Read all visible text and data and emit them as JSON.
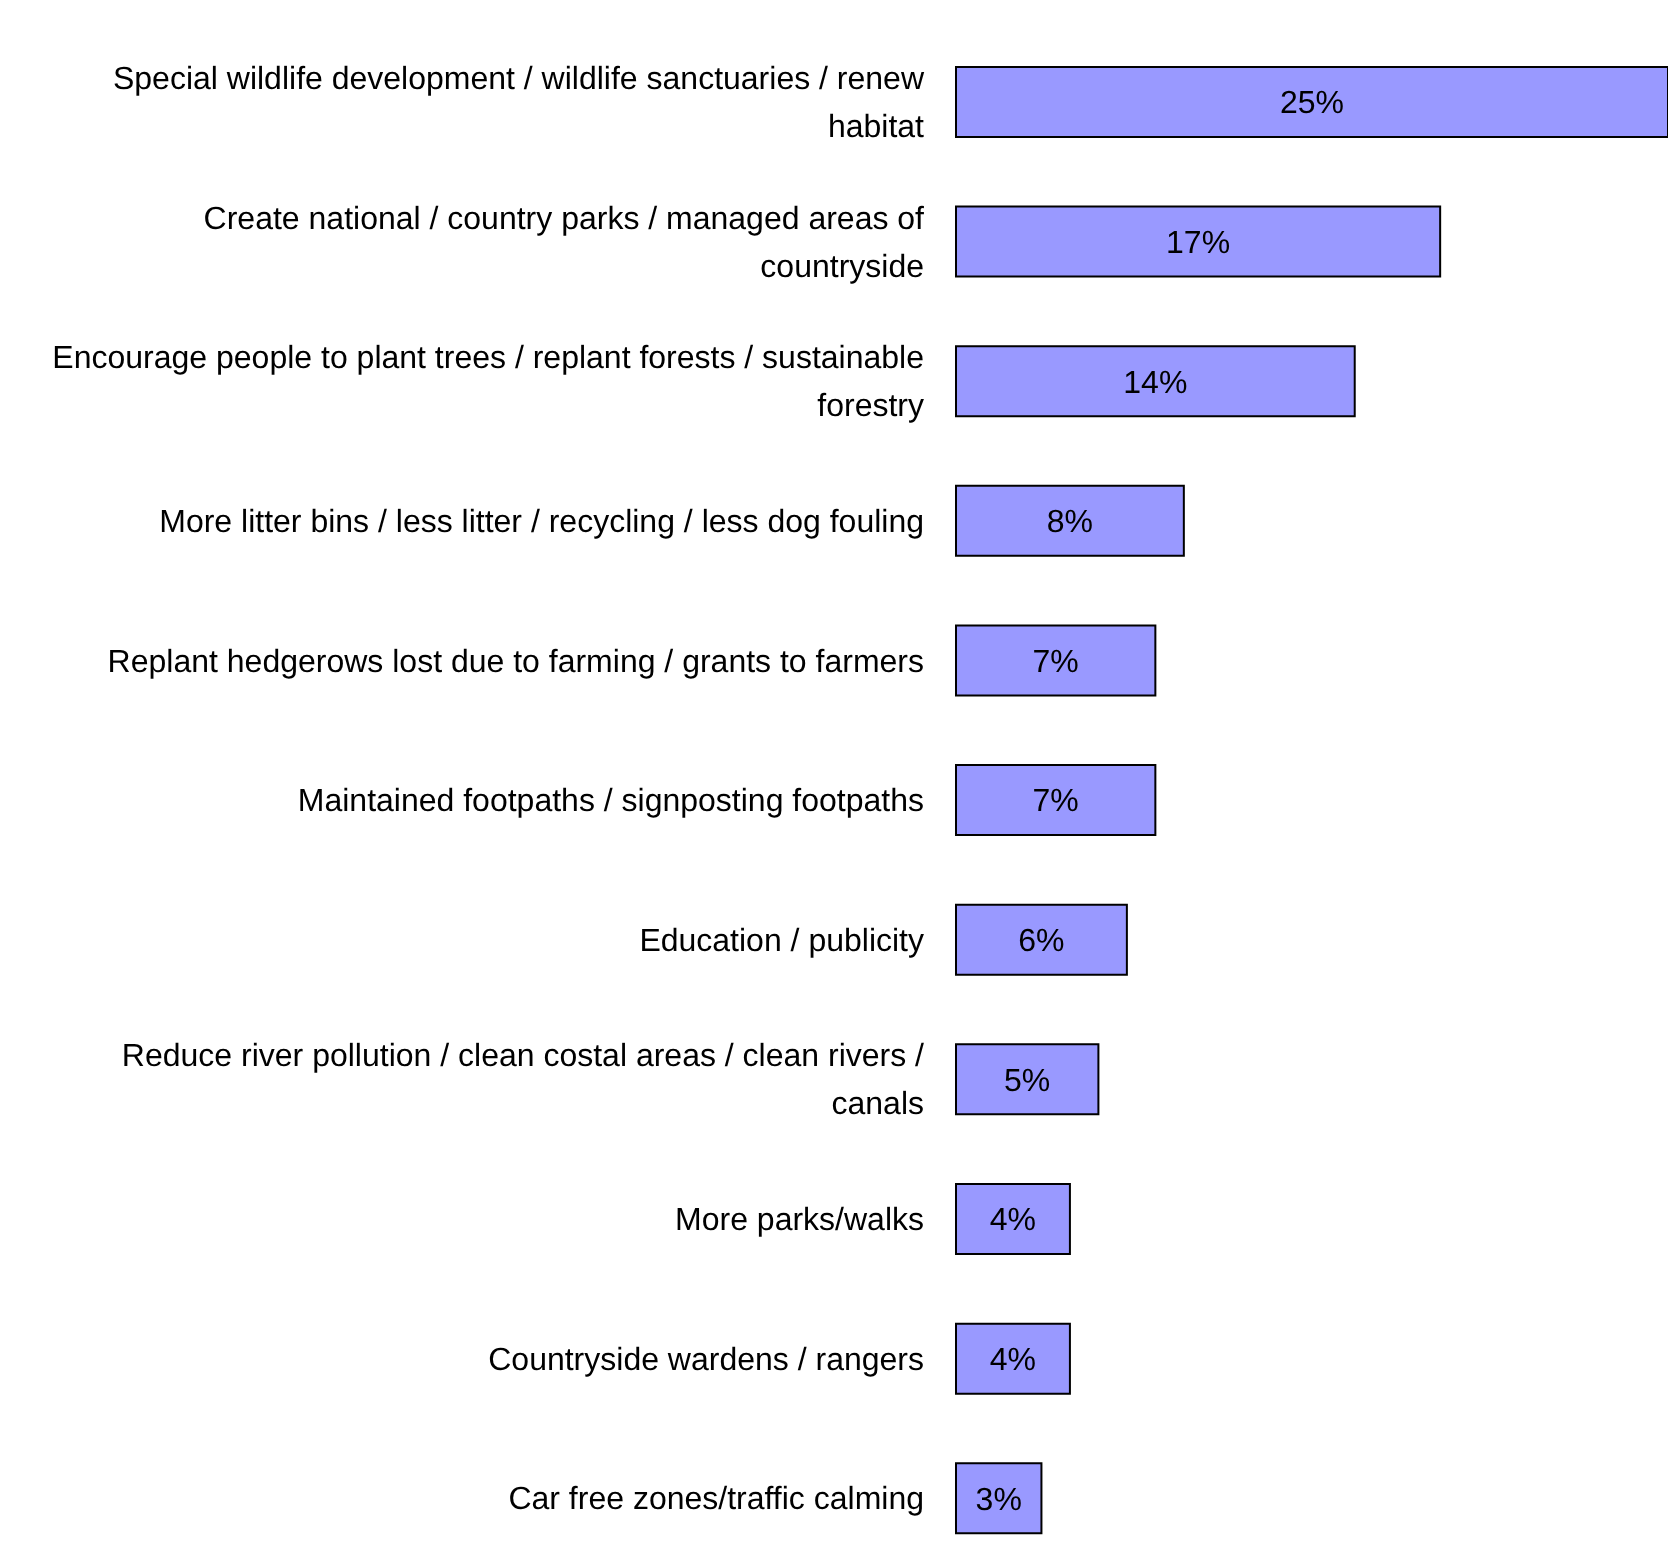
{
  "chart_data": {
    "type": "bar",
    "orientation": "horizontal",
    "categories": [
      "Special wildlife development / wildlife sanctuaries / renew habitat",
      "Create national / country parks / managed areas of countryside",
      "Encourage people to plant trees / replant forests / sustainable forestry",
      "More litter bins / less litter / recycling / less dog fouling",
      "Replant hedgerows lost due to farming / grants to farmers",
      "Maintained footpaths / signposting footpaths",
      "Education / publicity",
      "Reduce river pollution / clean costal areas / clean rivers / canals",
      "More parks/walks",
      "Countryside wardens / rangers",
      "Car free zones/traffic calming"
    ],
    "values": [
      25,
      17,
      14,
      8,
      7,
      7,
      6,
      5,
      4,
      4,
      3
    ],
    "value_labels": [
      "25%",
      "17%",
      "14%",
      "8%",
      "7%",
      "7%",
      "6%",
      "5%",
      "4%",
      "4%",
      "3%"
    ],
    "color": "#9999ff"
  }
}
